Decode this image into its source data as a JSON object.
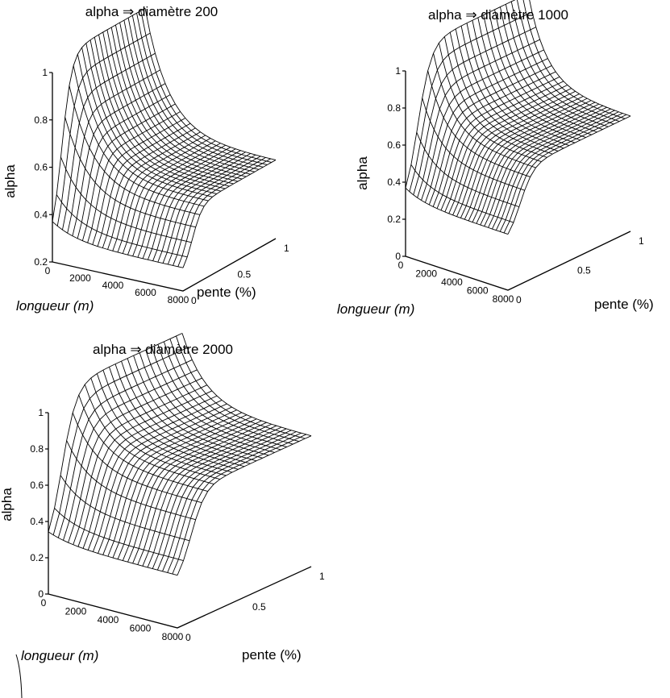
{
  "chart_data": [
    {
      "type": "surface",
      "title": "alpha ⇒ diamètre 200",
      "xlabel": "longueur (m)",
      "ylabel": "pente (%)",
      "zlabel": "alpha",
      "x_ticks": [
        "0",
        "2000",
        "4000",
        "6000",
        "8000"
      ],
      "y_ticks": [
        "0",
        "0.5",
        "1"
      ],
      "z_ticks": [
        "0.2",
        "0.4",
        "0.6",
        "0.8",
        "1"
      ],
      "xlim": [
        0,
        8000
      ],
      "ylim": [
        0,
        1
      ],
      "zlim": [
        0.2,
        1
      ],
      "surface": {
        "z_min": 0.26,
        "z_peak": 1.05,
        "z_plateau": 0.53
      }
    },
    {
      "type": "surface",
      "title": "alpha ⇒ diamètre 1000",
      "xlabel": "longueur (m)",
      "ylabel": "pente (%)",
      "zlabel": "alpha",
      "x_ticks": [
        "0",
        "2000",
        "4000",
        "6000",
        "8000"
      ],
      "y_ticks": [
        "0",
        "0.5",
        "1"
      ],
      "z_ticks": [
        "0",
        "0.2",
        "0.4",
        "0.6",
        "0.8",
        "1"
      ],
      "xlim": [
        0,
        8000
      ],
      "ylim": [
        0,
        1
      ],
      "zlim": [
        0,
        1
      ],
      "surface": {
        "z_min": 0.25,
        "z_peak": 1.1,
        "z_plateau": 0.62
      }
    },
    {
      "type": "surface",
      "title": "alpha ⇒ diamètre 2000",
      "xlabel": "longueur (m)",
      "ylabel": "pente (%)",
      "zlabel": "alpha",
      "x_ticks": [
        "0",
        "2000",
        "4000",
        "6000",
        "8000"
      ],
      "y_ticks": [
        "0",
        "0.5",
        "1"
      ],
      "z_ticks": [
        "0",
        "0.2",
        "0.4",
        "0.6",
        "0.8",
        "1"
      ],
      "xlim": [
        0,
        8000
      ],
      "ylim": [
        0,
        1
      ],
      "zlim": [
        0,
        1
      ],
      "surface": {
        "z_min": 0.22,
        "z_peak": 1.1,
        "z_plateau": 0.72
      }
    }
  ]
}
